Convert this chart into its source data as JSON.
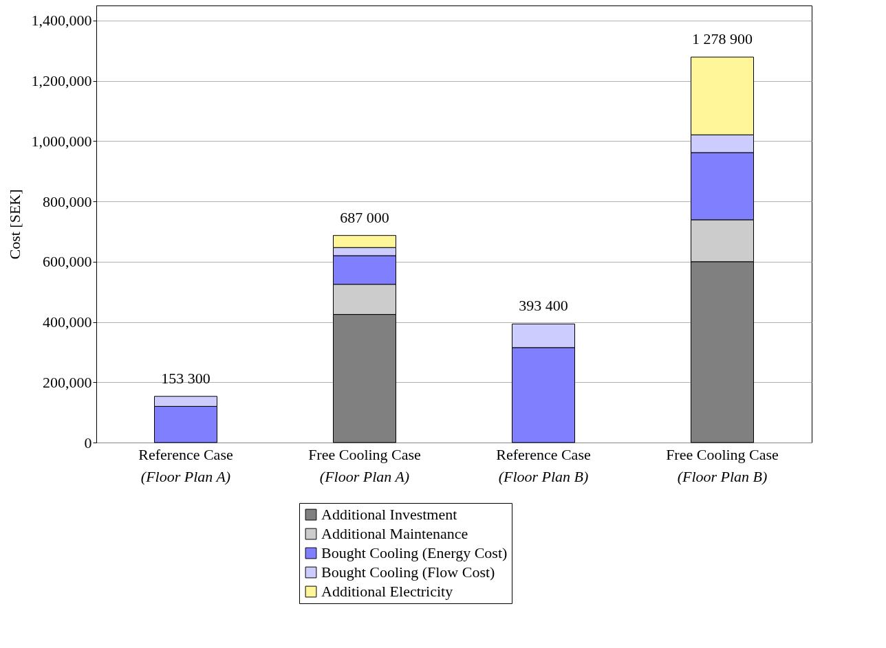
{
  "chart_data": {
    "type": "bar",
    "stacked": true,
    "ylabel": "Cost [SEK]",
    "categories": [
      "Reference Case\n(Floor Plan A)",
      "Free Cooling Case\n(Floor Plan A)",
      "Reference Case\n(Floor Plan B)",
      "Free Cooling Case\n(Floor Plan B)"
    ],
    "series": [
      {
        "name": "Additional Investment",
        "color": "#808080",
        "values": [
          null,
          425000,
          null,
          600000
        ]
      },
      {
        "name": "Additional Maintenance",
        "color": "#cccccc",
        "values": [
          null,
          100000,
          null,
          139000
        ]
      },
      {
        "name": "Bought Cooling (Energy Cost)",
        "color": "#8080ff",
        "values": [
          120000,
          95000,
          315000,
          223000
        ]
      },
      {
        "name": "Bought Cooling (Flow Cost)",
        "color": "#ccccff",
        "values": [
          33300,
          27000,
          78400,
          59000
        ]
      },
      {
        "name": "Additional Electricity",
        "color": "#fff599",
        "values": [
          null,
          40000,
          null,
          257900
        ]
      }
    ],
    "totals": [
      "153 300",
      "687 000",
      "393 400",
      "1 278 900"
    ],
    "ylim": [
      0,
      1450000
    ],
    "yticks": [
      0,
      {
        "value": 200000,
        "label": "200,000"
      },
      {
        "value": 400000,
        "label": "400,000"
      },
      {
        "value": 600000,
        "label": "600,000"
      },
      {
        "value": 800000,
        "label": "800,000"
      },
      {
        "value": 1000000,
        "label": "1,000,000"
      },
      {
        "value": 1200000,
        "label": "1,200,000"
      },
      {
        "value": 1400000,
        "label": "1,400,000"
      }
    ],
    "grid": "y",
    "legend": "bottom"
  }
}
